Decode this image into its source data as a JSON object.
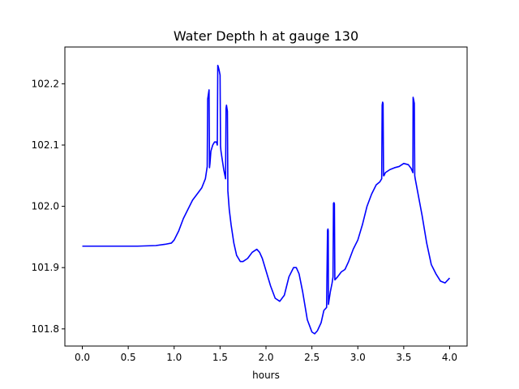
{
  "chart_data": {
    "type": "line",
    "title": "Water Depth h at gauge 130",
    "xlabel": "hours",
    "ylabel": "",
    "xlim": [
      -0.19,
      4.19
    ],
    "ylim": [
      101.772,
      102.26
    ],
    "xticks": [
      0.0,
      0.5,
      1.0,
      1.5,
      2.0,
      2.5,
      3.0,
      3.5,
      4.0
    ],
    "xtick_labels": [
      "0.0",
      "0.5",
      "1.0",
      "1.5",
      "2.0",
      "2.5",
      "3.0",
      "3.5",
      "4.0"
    ],
    "yticks": [
      101.8,
      101.9,
      102.0,
      102.1,
      102.2
    ],
    "ytick_labels": [
      "101.8",
      "101.9",
      "102.0",
      "102.1",
      "102.2"
    ],
    "grid": false,
    "series": [
      {
        "color": "#0000ff",
        "x": [
          0.0,
          0.3,
          0.6,
          0.8,
          0.9,
          0.97,
          1.0,
          1.05,
          1.1,
          1.15,
          1.2,
          1.25,
          1.3,
          1.34,
          1.36,
          1.365,
          1.37,
          1.375,
          1.38,
          1.385,
          1.39,
          1.4,
          1.42,
          1.44,
          1.46,
          1.47,
          1.475,
          1.48,
          1.49,
          1.5,
          1.505,
          1.51,
          1.52,
          1.54,
          1.56,
          1.565,
          1.57,
          1.575,
          1.58,
          1.585,
          1.6,
          1.62,
          1.65,
          1.68,
          1.72,
          1.75,
          1.8,
          1.85,
          1.9,
          1.93,
          1.96,
          2.0,
          2.05,
          2.1,
          2.15,
          2.2,
          2.25,
          2.3,
          2.33,
          2.36,
          2.4,
          2.45,
          2.5,
          2.53,
          2.56,
          2.6,
          2.63,
          2.66,
          2.67,
          2.672,
          2.675,
          2.678,
          2.68,
          2.69,
          2.7,
          2.72,
          2.73,
          2.735,
          2.74,
          2.745,
          2.75,
          2.78,
          2.82,
          2.86,
          2.9,
          2.95,
          3.0,
          3.05,
          3.1,
          3.15,
          3.2,
          3.24,
          3.26,
          3.265,
          3.27,
          3.275,
          3.28,
          3.285,
          3.3,
          3.35,
          3.4,
          3.45,
          3.5,
          3.55,
          3.58,
          3.6,
          3.602,
          3.605,
          3.61,
          3.615,
          3.62,
          3.625,
          3.65,
          3.7,
          3.75,
          3.8,
          3.85,
          3.9,
          3.95,
          4.0
        ],
        "y": [
          101.935,
          101.935,
          101.935,
          101.936,
          101.938,
          101.94,
          101.945,
          101.96,
          101.98,
          101.995,
          102.01,
          102.02,
          102.03,
          102.045,
          102.065,
          102.175,
          102.18,
          102.185,
          102.19,
          102.063,
          102.07,
          102.09,
          102.1,
          102.105,
          102.105,
          102.1,
          102.23,
          102.228,
          102.222,
          102.214,
          102.098,
          102.09,
          102.08,
          102.06,
          102.045,
          102.16,
          102.165,
          102.16,
          102.155,
          102.025,
          101.995,
          101.97,
          101.94,
          101.92,
          101.91,
          101.91,
          101.915,
          101.925,
          101.93,
          101.925,
          101.915,
          101.895,
          101.87,
          101.85,
          101.845,
          101.855,
          101.885,
          101.9,
          101.9,
          101.89,
          101.86,
          101.815,
          101.795,
          101.792,
          101.797,
          101.81,
          101.83,
          101.835,
          101.96,
          101.962,
          101.963,
          101.96,
          101.84,
          101.85,
          101.86,
          101.875,
          101.885,
          102.005,
          102.006,
          102.004,
          101.88,
          101.885,
          101.893,
          101.897,
          101.91,
          101.93,
          101.945,
          101.97,
          102.0,
          102.02,
          102.035,
          102.04,
          102.045,
          102.165,
          102.17,
          102.168,
          102.05,
          102.05,
          102.055,
          102.06,
          102.063,
          102.065,
          102.07,
          102.068,
          102.062,
          102.055,
          102.178,
          102.176,
          102.172,
          102.168,
          102.05,
          102.045,
          102.025,
          101.985,
          101.94,
          101.905,
          101.89,
          101.878,
          101.875,
          101.883
        ]
      }
    ]
  }
}
